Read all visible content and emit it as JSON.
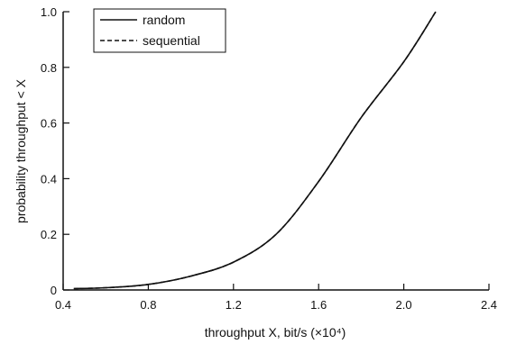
{
  "chart_data": {
    "type": "line",
    "xlabel": "throughput X, bit/s (×10⁴)",
    "ylabel": "probability throughput < X",
    "xlim": [
      0.4,
      2.4
    ],
    "ylim": [
      0,
      1.0
    ],
    "xticks": [
      "0.4",
      "0.8",
      "1.2",
      "1.6",
      "2.0",
      "2.4"
    ],
    "yticks": [
      "0",
      "0.2",
      "0.4",
      "0.6",
      "0.8",
      "1.0"
    ],
    "grid": false,
    "legend_position": "top-left",
    "series": [
      {
        "name": "random",
        "line_style": "solid",
        "color": "#111111",
        "x": [
          0.45,
          0.6,
          0.8,
          1.0,
          1.2,
          1.4,
          1.6,
          1.8,
          2.0,
          2.15
        ],
        "y": [
          0.005,
          0.008,
          0.02,
          0.05,
          0.1,
          0.2,
          0.39,
          0.62,
          0.82,
          1.0
        ]
      },
      {
        "name": "sequential",
        "line_style": "dashed",
        "color": "#111111",
        "x": [
          0.45,
          0.6,
          0.8,
          1.0,
          1.2,
          1.4,
          1.6,
          1.8,
          2.0,
          2.15
        ],
        "y": [
          0.005,
          0.008,
          0.02,
          0.05,
          0.1,
          0.2,
          0.39,
          0.62,
          0.82,
          1.0
        ]
      }
    ]
  }
}
